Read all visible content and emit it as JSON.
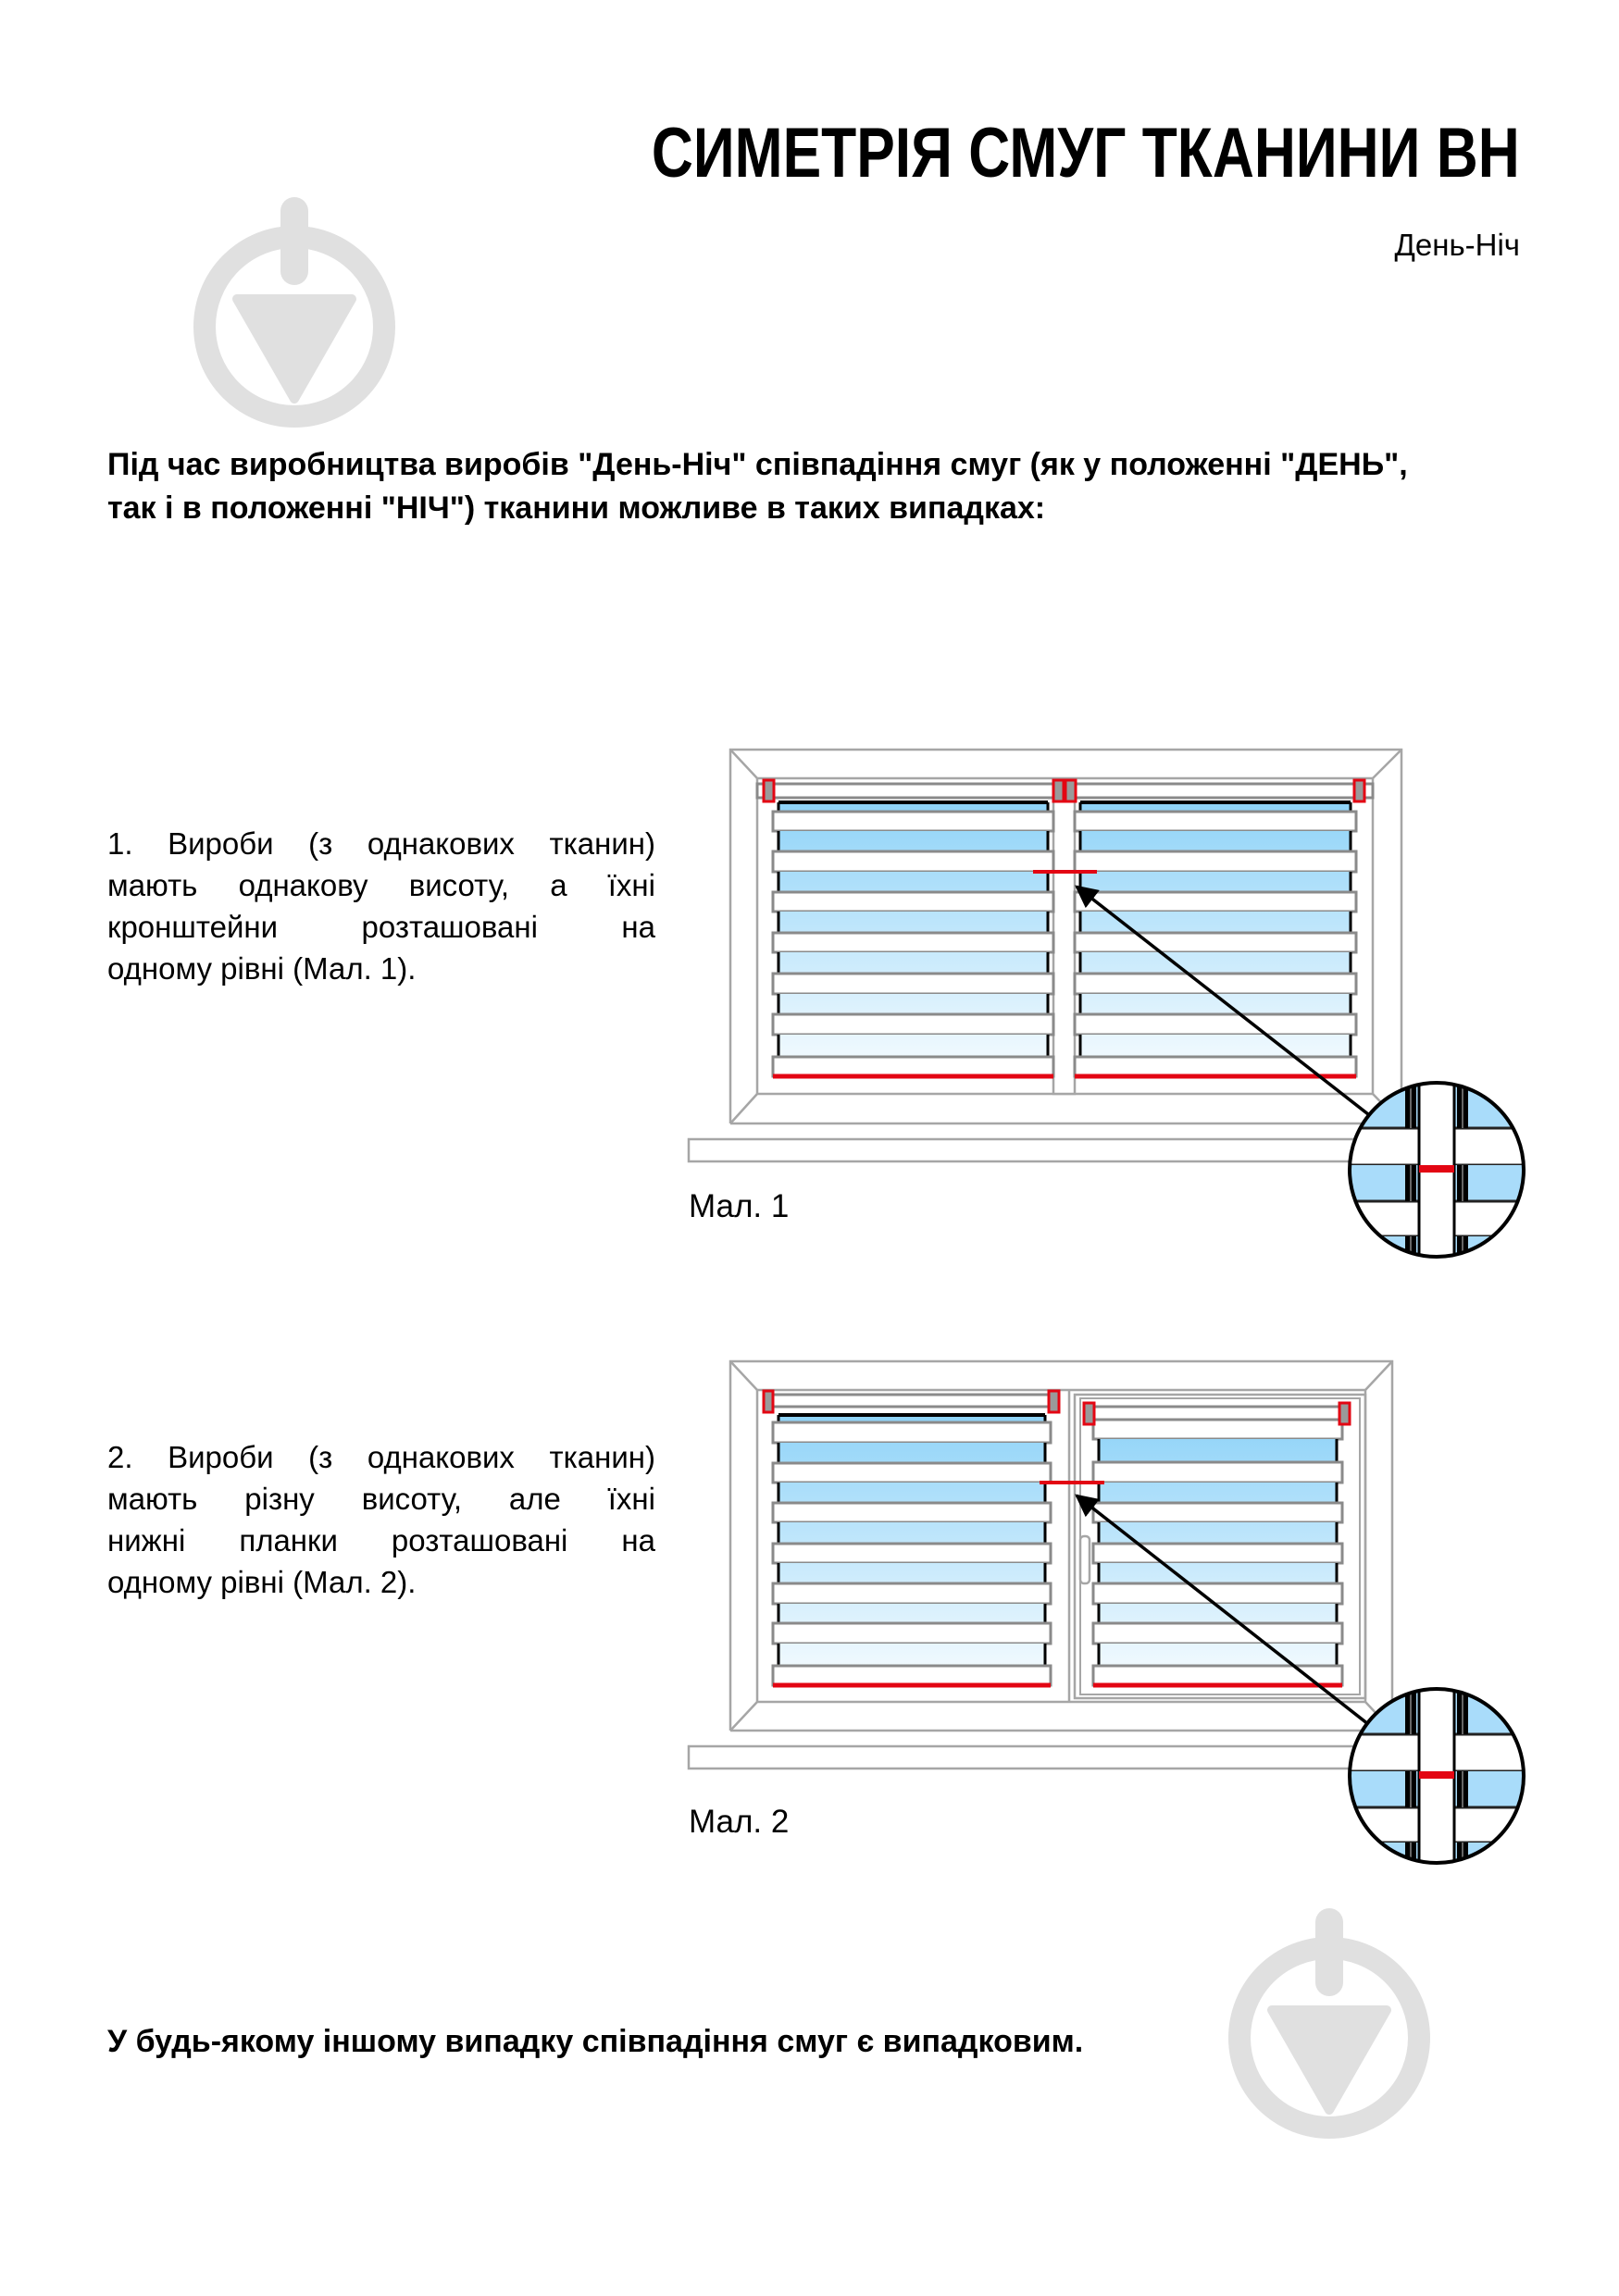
{
  "header": {
    "title": "СИМЕТРІЯ СМУГ ТКАНИНИ ВН",
    "subtitle": "День-Ніч"
  },
  "intro": {
    "lines": [
      "Під час виробництва виробів \"День-Ніч\" співпадіння смуг (як у положенні \"ДЕНЬ\",",
      "так і в положенні \"НІЧ\") тканини можливе в таких випадках:"
    ]
  },
  "cases": [
    {
      "lines": [
        "1. Вироби (з однакових тканин)",
        "мають однакову висоту, а їхні",
        "кронштейни розташовані на",
        "одному рівні (Мал. 1)."
      ],
      "caption": "Мал. 1"
    },
    {
      "lines": [
        "2. Вироби (з однакових тканин)",
        "мають різну висоту, але їхні",
        "нижні планки розташовані на",
        "одному рівні (Мал. 2)."
      ],
      "caption": "Мал. 2"
    }
  ],
  "footer": {
    "text": "У будь-якому іншому випадку співпадіння смуг є випадковим."
  },
  "colors": {
    "accent_red": "#e30613",
    "sheer_blue": "#8fd3f8",
    "frame_gray": "#a6a6a6",
    "watermark_gray": "#e0e0e0"
  },
  "icons": [
    "watermark-logo-icon",
    "arrow-icon",
    "magnifier-detail-icon"
  ]
}
